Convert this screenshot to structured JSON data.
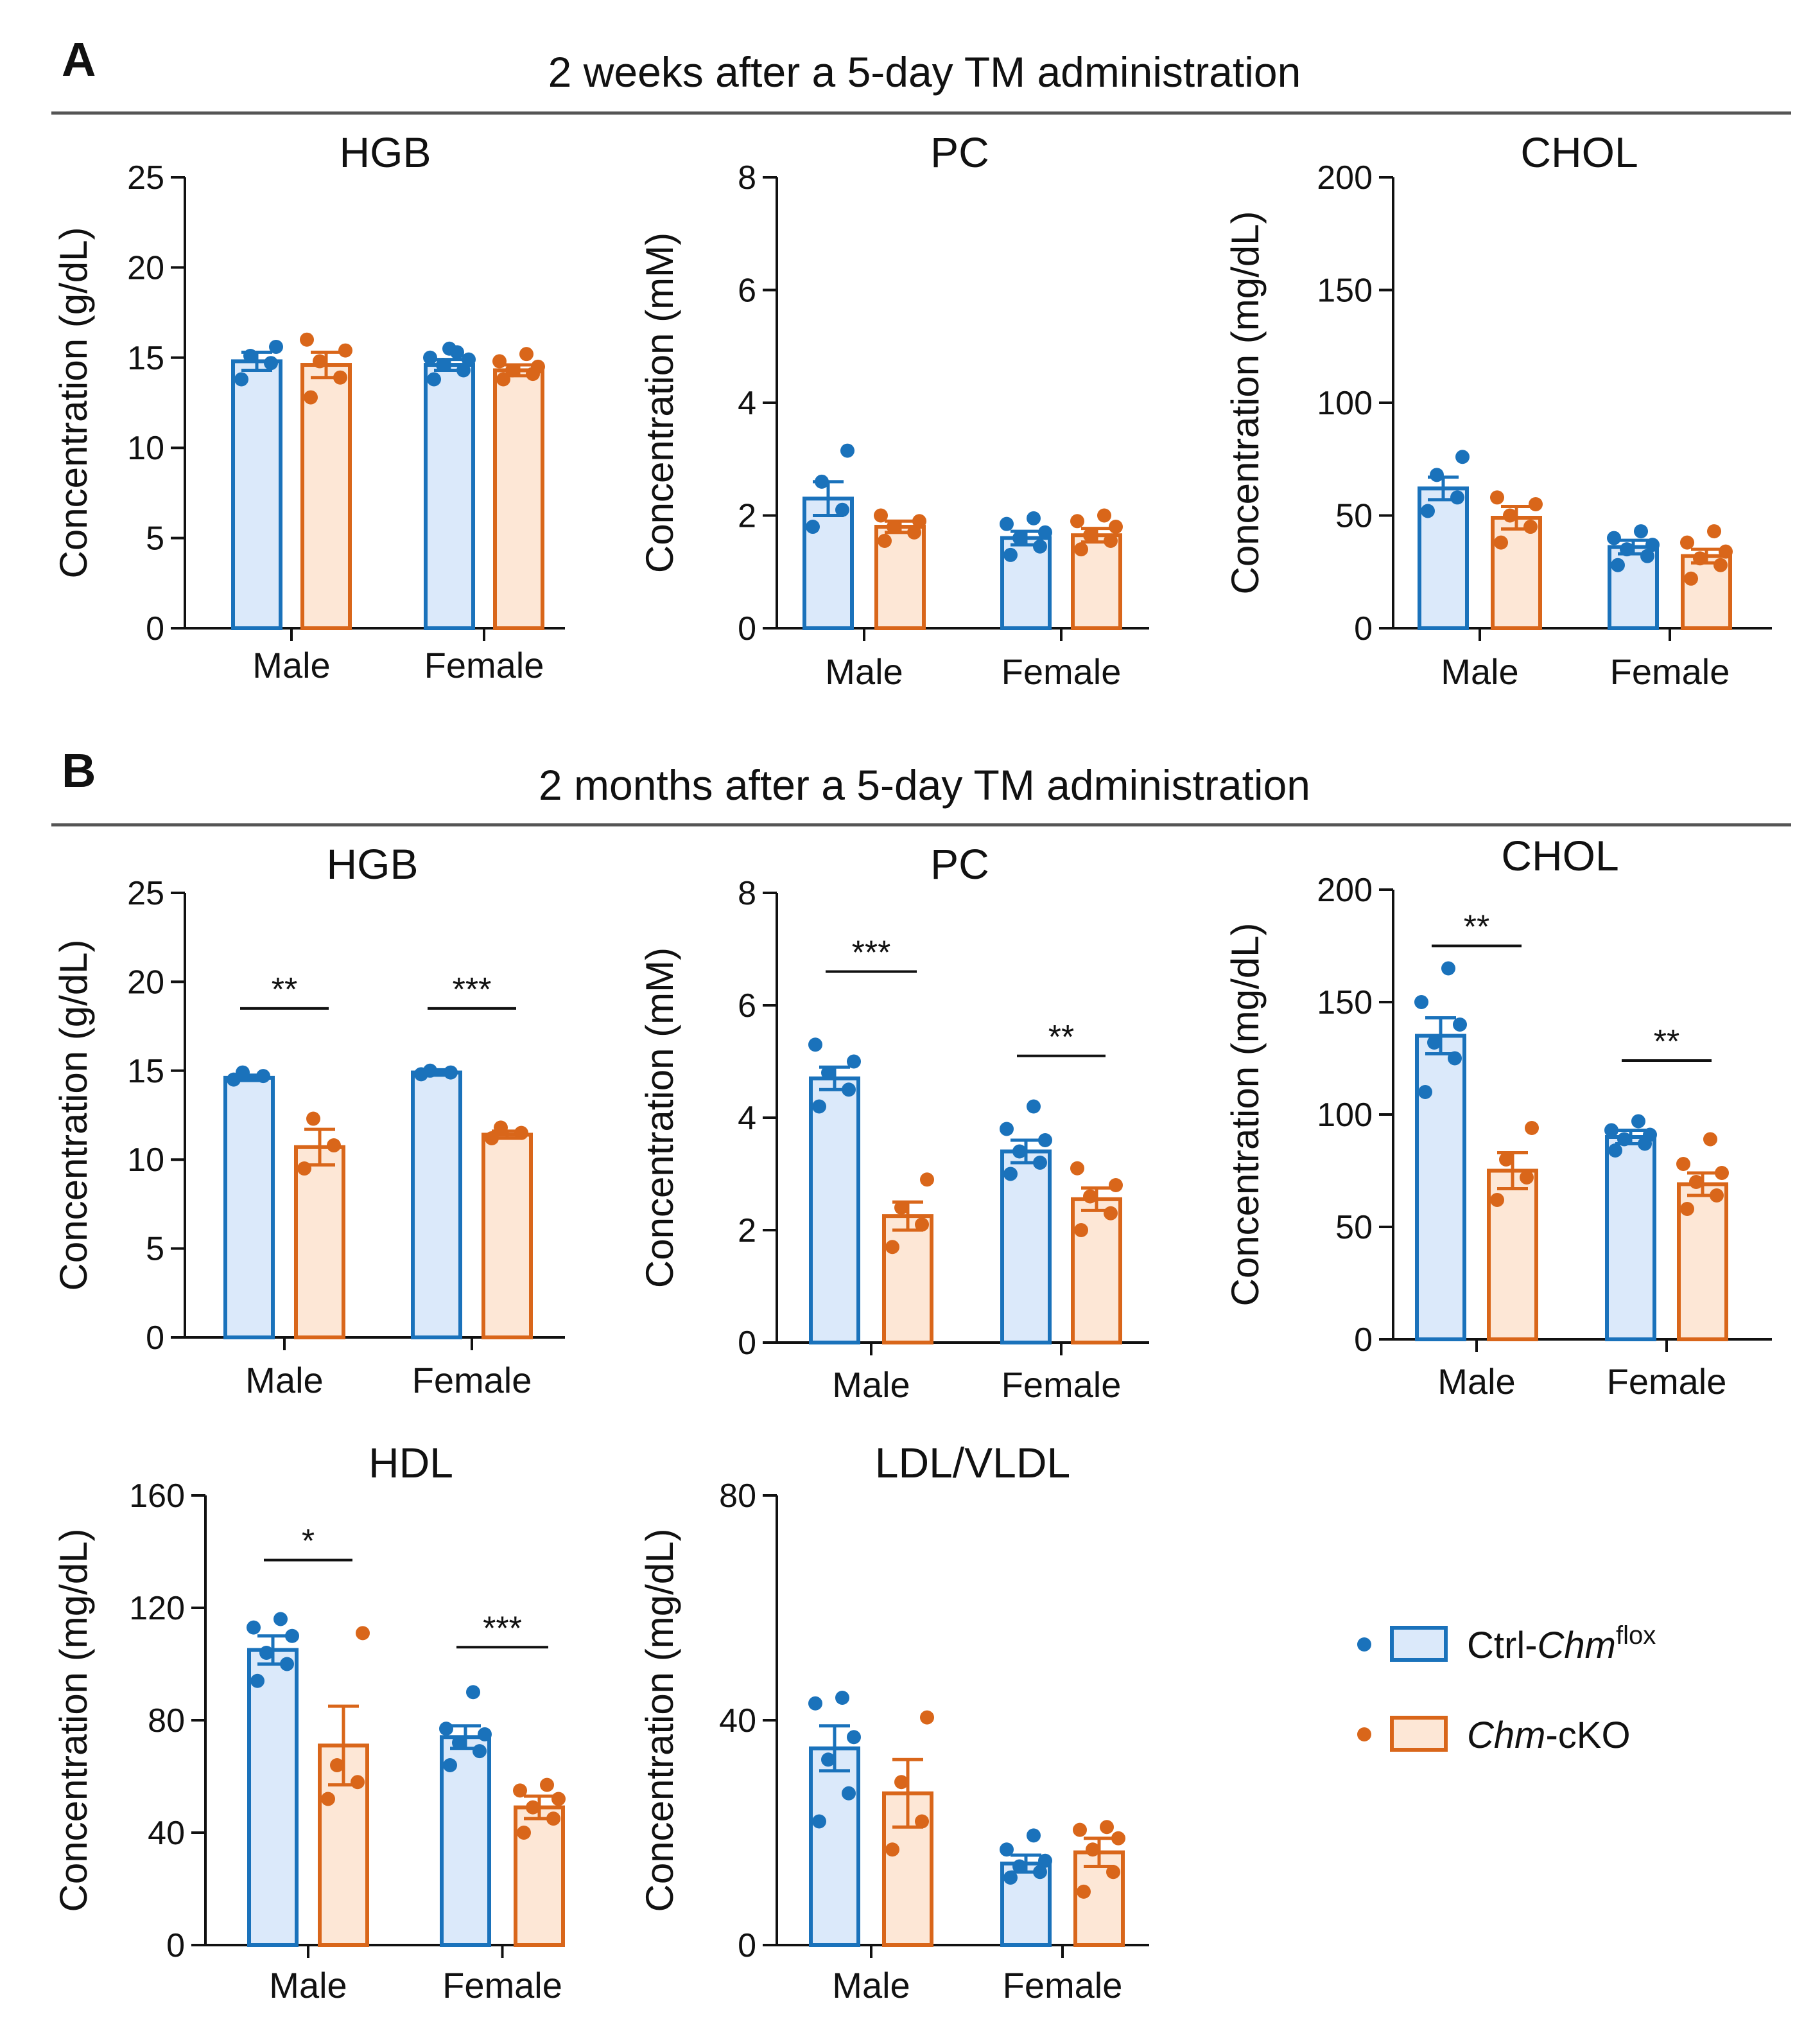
{
  "figure": {
    "panels": [
      {
        "letter": "A",
        "title": "2 weeks after a 5-day TM administration"
      },
      {
        "letter": "B",
        "title": "2 months after a 5-day TM administration"
      }
    ],
    "legend": [
      {
        "prefix": "Ctrl-",
        "italic": "Chm",
        "sup": "flox",
        "suffix": "",
        "color": "#1a72bb",
        "fill": "#dbe9fa"
      },
      {
        "prefix": "",
        "italic": "Chm",
        "sup": "",
        "suffix": "-cKO",
        "color": "#d9661a",
        "fill": "#fde7d6"
      }
    ],
    "colors": {
      "ctrl_stroke": "#1a72bb",
      "ctrl_fill": "#dbe9fa",
      "cko_stroke": "#d9661a",
      "cko_fill": "#fde7d6",
      "axis": "#111111",
      "rule": "#555555"
    }
  },
  "chart_data": [
    {
      "id": "A-HGB",
      "panel": "A",
      "type": "bar",
      "title": "HGB",
      "ylabel": "Concentration (g/dL)",
      "ylim": [
        0,
        25
      ],
      "yticks": [
        0,
        5,
        10,
        15,
        20,
        25
      ],
      "tick_labels": [
        "0",
        "5",
        "10",
        "15",
        "20",
        "25"
      ],
      "categories": [
        "Male",
        "Female"
      ],
      "series": [
        {
          "name": "Ctrl-Chm flox",
          "values": [
            14.8,
            14.6
          ],
          "errors": [
            0.5,
            0.3
          ],
          "points": [
            [
              13.8,
              14.7,
              15.1,
              15.6
            ],
            [
              13.8,
              14.3,
              14.6,
              14.9,
              15.0,
              15.3,
              15.5
            ]
          ]
        },
        {
          "name": "Chm-cKO",
          "values": [
            14.6,
            14.3
          ],
          "errors": [
            0.7,
            0.3
          ],
          "points": [
            [
              12.8,
              13.9,
              14.8,
              15.4,
              16.0
            ],
            [
              13.8,
              14.1,
              14.3,
              14.5,
              14.8,
              15.2
            ]
          ]
        }
      ],
      "significance": []
    },
    {
      "id": "A-PC",
      "panel": "A",
      "type": "bar",
      "title": "PC",
      "ylabel": "Concentration (mM)",
      "ylim": [
        0,
        8
      ],
      "yticks": [
        0,
        2,
        4,
        6,
        8
      ],
      "tick_labels": [
        "0",
        "2",
        "4",
        "6",
        "8"
      ],
      "categories": [
        "Male",
        "Female"
      ],
      "series": [
        {
          "name": "Ctrl-Chm flox",
          "values": [
            2.3,
            1.6
          ],
          "errors": [
            0.3,
            0.12
          ],
          "points": [
            [
              1.8,
              2.1,
              2.6,
              3.15
            ],
            [
              1.3,
              1.45,
              1.6,
              1.7,
              1.85,
              1.95
            ]
          ]
        },
        {
          "name": "Chm-cKO",
          "values": [
            1.8,
            1.65
          ],
          "errors": [
            0.1,
            0.12
          ],
          "points": [
            [
              1.55,
              1.7,
              1.8,
              1.9,
              2.0
            ],
            [
              1.4,
              1.55,
              1.65,
              1.8,
              1.9,
              2.0
            ]
          ]
        }
      ],
      "significance": []
    },
    {
      "id": "A-CHOL",
      "panel": "A",
      "type": "bar",
      "title": "CHOL",
      "ylabel": "Concentration  (mg/dL)",
      "ylim": [
        0,
        200
      ],
      "yticks": [
        0,
        50,
        100,
        150,
        200
      ],
      "tick_labels": [
        "0",
        "50",
        "100",
        "150",
        "200"
      ],
      "categories": [
        "Male",
        "Female"
      ],
      "series": [
        {
          "name": "Ctrl-Chm flox",
          "values": [
            62,
            36
          ],
          "errors": [
            5,
            3
          ],
          "points": [
            [
              52,
              58,
              68,
              76
            ],
            [
              28,
              32,
              35,
              37,
              40,
              43
            ]
          ]
        },
        {
          "name": "Chm-cKO",
          "values": [
            49,
            32
          ],
          "errors": [
            5,
            3
          ],
          "points": [
            [
              38,
              45,
              50,
              55,
              58
            ],
            [
              22,
              28,
              31,
              34,
              38,
              43
            ]
          ]
        }
      ],
      "significance": []
    },
    {
      "id": "B-HGB",
      "panel": "B",
      "type": "bar",
      "title": "HGB",
      "ylabel": "Concentration (g/dL)",
      "ylim": [
        0,
        25
      ],
      "yticks": [
        0,
        5,
        10,
        15,
        20,
        25
      ],
      "tick_labels": [
        "0",
        "5",
        "10",
        "15",
        "20",
        "25"
      ],
      "categories": [
        "Male",
        "Female"
      ],
      "series": [
        {
          "name": "Ctrl-Chm flox",
          "values": [
            14.6,
            14.9
          ],
          "errors": [
            0.15,
            0.15
          ],
          "points": [
            [
              14.5,
              14.7,
              14.9
            ],
            [
              14.8,
              14.9,
              15.0
            ]
          ]
        },
        {
          "name": "Chm-cKO",
          "values": [
            10.7,
            11.4
          ],
          "errors": [
            1.0,
            0.2
          ],
          "points": [
            [
              9.5,
              10.8,
              12.3
            ],
            [
              11.2,
              11.5,
              11.8
            ]
          ]
        }
      ],
      "significance": [
        {
          "label": "**",
          "y": 18.5
        },
        {
          "label": "***",
          "y": 18.5
        }
      ]
    },
    {
      "id": "B-PC",
      "panel": "B",
      "type": "bar",
      "title": "PC",
      "ylabel": "Concentration (mM)",
      "ylim": [
        0,
        8
      ],
      "yticks": [
        0,
        2,
        4,
        6,
        8
      ],
      "tick_labels": [
        "0",
        "2",
        "4",
        "6",
        "8"
      ],
      "categories": [
        "Male",
        "Female"
      ],
      "series": [
        {
          "name": "Ctrl-Chm flox",
          "values": [
            4.7,
            3.4
          ],
          "errors": [
            0.2,
            0.2
          ],
          "points": [
            [
              4.2,
              4.5,
              4.8,
              5.0,
              5.3
            ],
            [
              3.0,
              3.2,
              3.4,
              3.6,
              3.8,
              4.2
            ]
          ]
        },
        {
          "name": "Chm-cKO",
          "values": [
            2.25,
            2.55
          ],
          "errors": [
            0.25,
            0.2
          ],
          "points": [
            [
              1.7,
              2.1,
              2.4,
              2.9
            ],
            [
              2.0,
              2.3,
              2.6,
              2.8,
              3.1
            ]
          ]
        }
      ],
      "significance": [
        {
          "label": "***",
          "y": 6.6
        },
        {
          "label": "**",
          "y": 5.1
        }
      ]
    },
    {
      "id": "B-CHOL",
      "panel": "B",
      "type": "bar",
      "title": "CHOL",
      "ylabel": "Concentration  (mg/dL)",
      "ylim": [
        0,
        200
      ],
      "yticks": [
        0,
        50,
        100,
        150,
        200
      ],
      "tick_labels": [
        "0",
        "50",
        "100",
        "150",
        "200"
      ],
      "categories": [
        "Male",
        "Female"
      ],
      "series": [
        {
          "name": "Ctrl-Chm flox",
          "values": [
            135,
            90
          ],
          "errors": [
            8,
            3
          ],
          "points": [
            [
              110,
              125,
              132,
              140,
              150,
              165
            ],
            [
              84,
              87,
              89,
              91,
              93,
              97
            ]
          ]
        },
        {
          "name": "Chm-cKO",
          "values": [
            75,
            69
          ],
          "errors": [
            8,
            5
          ],
          "points": [
            [
              62,
              72,
              80,
              94
            ],
            [
              58,
              64,
              70,
              74,
              78,
              89
            ]
          ]
        }
      ],
      "significance": [
        {
          "label": "**",
          "y": 175
        },
        {
          "label": "**",
          "y": 124
        }
      ]
    },
    {
      "id": "B-HDL",
      "panel": "B",
      "type": "bar",
      "title": "HDL",
      "ylabel": "Concentration  (mg/dL)",
      "ylim": [
        0,
        160
      ],
      "yticks": [
        0,
        40,
        80,
        120,
        160
      ],
      "tick_labels": [
        "0",
        "40",
        "80",
        "120",
        "160"
      ],
      "categories": [
        "Male",
        "Female"
      ],
      "series": [
        {
          "name": "Ctrl-Chm flox",
          "values": [
            105,
            74
          ],
          "errors": [
            5,
            4
          ],
          "points": [
            [
              94,
              100,
              104,
              110,
              113,
              116
            ],
            [
              64,
              69,
              72,
              75,
              77,
              90
            ]
          ]
        },
        {
          "name": "Chm-cKO",
          "values": [
            71,
            49
          ],
          "errors": [
            14,
            4
          ],
          "points": [
            [
              52,
              58,
              64,
              111
            ],
            [
              40,
              45,
              49,
              52,
              55,
              57
            ]
          ]
        }
      ],
      "significance": [
        {
          "label": "*",
          "y": 137
        },
        {
          "label": "***",
          "y": 106
        }
      ]
    },
    {
      "id": "B-LDLVLDL",
      "panel": "B",
      "type": "bar",
      "title": "LDL/VLDL",
      "ylabel": "Concentration  (mg/dL)",
      "ylim": [
        0,
        80
      ],
      "yticks": [
        0,
        40,
        80
      ],
      "tick_labels": [
        "0",
        "40",
        "80"
      ],
      "categories": [
        "Male",
        "Female"
      ],
      "series": [
        {
          "name": "Ctrl-Chm flox",
          "values": [
            35,
            14.5
          ],
          "errors": [
            4,
            1.5
          ],
          "points": [
            [
              22,
              27,
              33,
              37,
              43,
              44
            ],
            [
              12,
              13,
              14,
              15,
              17,
              19.5
            ]
          ]
        },
        {
          "name": "Chm-cKO",
          "values": [
            27,
            16.5
          ],
          "errors": [
            6,
            2.5
          ],
          "points": [
            [
              17,
              22,
              29,
              40.5
            ],
            [
              9.5,
              13,
              17,
              19,
              20.5,
              21
            ]
          ]
        }
      ],
      "significance": []
    }
  ]
}
